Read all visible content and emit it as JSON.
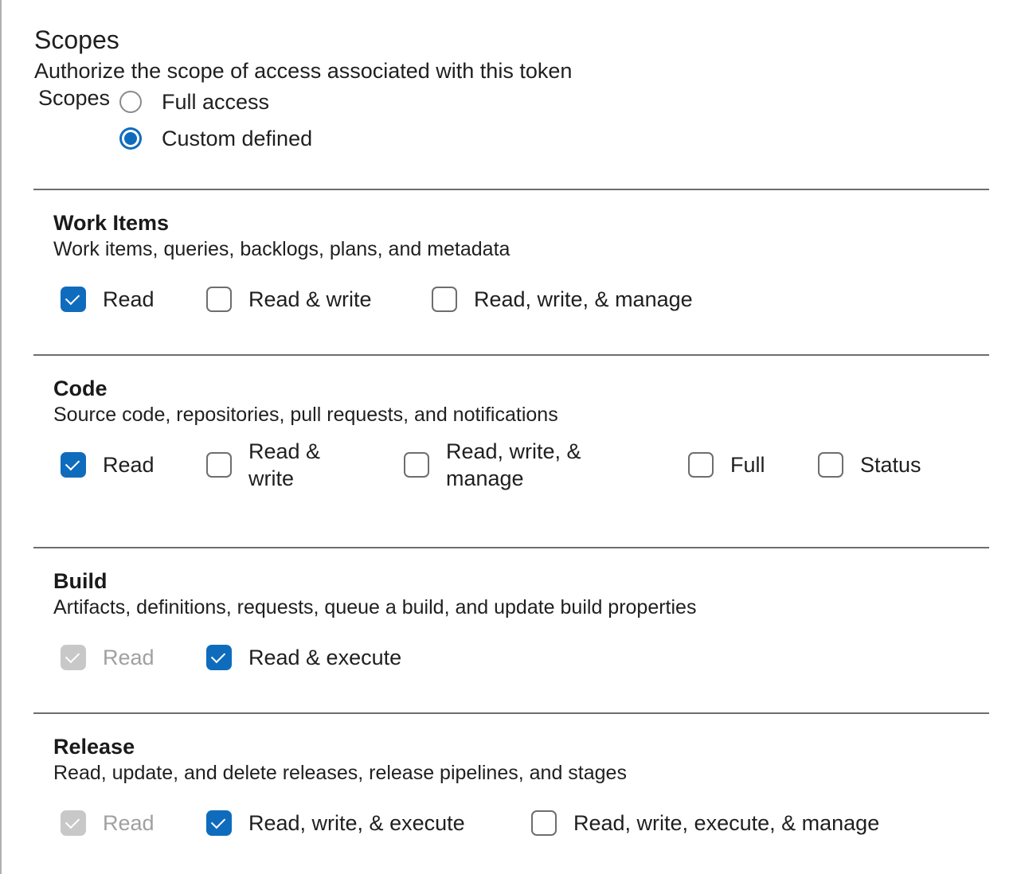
{
  "header": {
    "title": "Scopes",
    "subtitle": "Authorize the scope of access associated with this token"
  },
  "scopes": {
    "label": "Scopes",
    "options": [
      {
        "label": "Full access",
        "selected": false
      },
      {
        "label": "Custom defined",
        "selected": true
      }
    ]
  },
  "colors": {
    "accent": "#0f6cbd",
    "disabled": "#c8c8c8"
  },
  "sections": [
    {
      "title": "Work Items",
      "description": "Work items, queries, backlogs, plans, and metadata",
      "options": [
        {
          "label": "Read",
          "checked": true
        },
        {
          "label": "Read & write",
          "checked": false
        },
        {
          "label": "Read, write, & manage",
          "checked": false
        }
      ]
    },
    {
      "title": "Code",
      "description": "Source code, repositories, pull requests, and notifications",
      "options": [
        {
          "label": "Read",
          "checked": true
        },
        {
          "label": "Read & write",
          "checked": false
        },
        {
          "label": "Read, write, & manage",
          "checked": false
        },
        {
          "label": "Full",
          "checked": false
        },
        {
          "label": "Status",
          "checked": false
        }
      ]
    },
    {
      "title": "Build",
      "description": "Artifacts, definitions, requests, queue a build, and update build properties",
      "options": [
        {
          "label": "Read",
          "checked": true,
          "disabled": true
        },
        {
          "label": "Read & execute",
          "checked": true
        }
      ]
    },
    {
      "title": "Release",
      "description": "Read, update, and delete releases, release pipelines, and stages",
      "options": [
        {
          "label": "Read",
          "checked": true,
          "disabled": true
        },
        {
          "label": "Read, write, & execute",
          "checked": true
        },
        {
          "label": "Read, write, execute, & manage",
          "checked": false
        }
      ]
    }
  ]
}
